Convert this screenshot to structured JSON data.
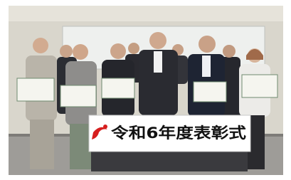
{
  "banner": {
    "text": "令和6年度表彰式"
  }
}
